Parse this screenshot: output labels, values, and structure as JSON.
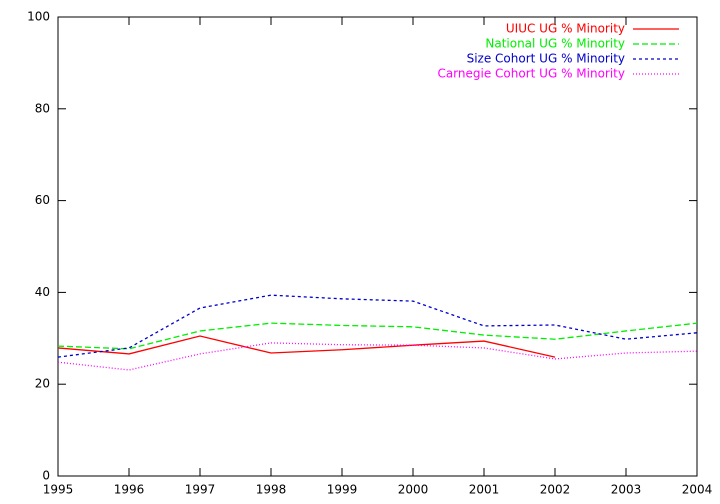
{
  "chart_data": {
    "type": "line",
    "x": [
      1995,
      1996,
      1997,
      1998,
      1999,
      2000,
      2001,
      2002,
      2003,
      2004
    ],
    "series": [
      {
        "name": "UIUC UG % Minority",
        "color": "#ff0000",
        "dash": "solid",
        "values": [
          27.9,
          26.6,
          30.5,
          26.8,
          27.5,
          28.5,
          29.4,
          25.9,
          null,
          null
        ]
      },
      {
        "name": "National UG % Minority",
        "color": "#00ee00",
        "dash": "dashed",
        "values": [
          28.3,
          27.7,
          31.6,
          33.3,
          32.8,
          32.5,
          30.7,
          29.8,
          31.6,
          33.3
        ]
      },
      {
        "name": "Size Cohort UG % Minority",
        "color": "#0000cc",
        "dash": "dotted",
        "values": [
          25.9,
          27.9,
          36.6,
          39.4,
          38.6,
          38.1,
          32.7,
          32.9,
          29.8,
          31.2
        ]
      },
      {
        "name": "Carnegie Cohort UG % Minority",
        "color": "#ff00ff",
        "dash": "fine-dotted",
        "values": [
          24.8,
          23.1,
          26.6,
          29.0,
          28.6,
          28.5,
          27.9,
          25.5,
          26.8,
          27.2
        ]
      }
    ],
    "xlim": [
      1995,
      2004
    ],
    "xticks": [
      1995,
      1996,
      1997,
      1998,
      1999,
      2000,
      2001,
      2002,
      2003,
      2004
    ],
    "ylim": [
      0,
      100
    ],
    "yticks": [
      0,
      20,
      40,
      60,
      80,
      100
    ],
    "grid": false,
    "legend": "top-right"
  }
}
